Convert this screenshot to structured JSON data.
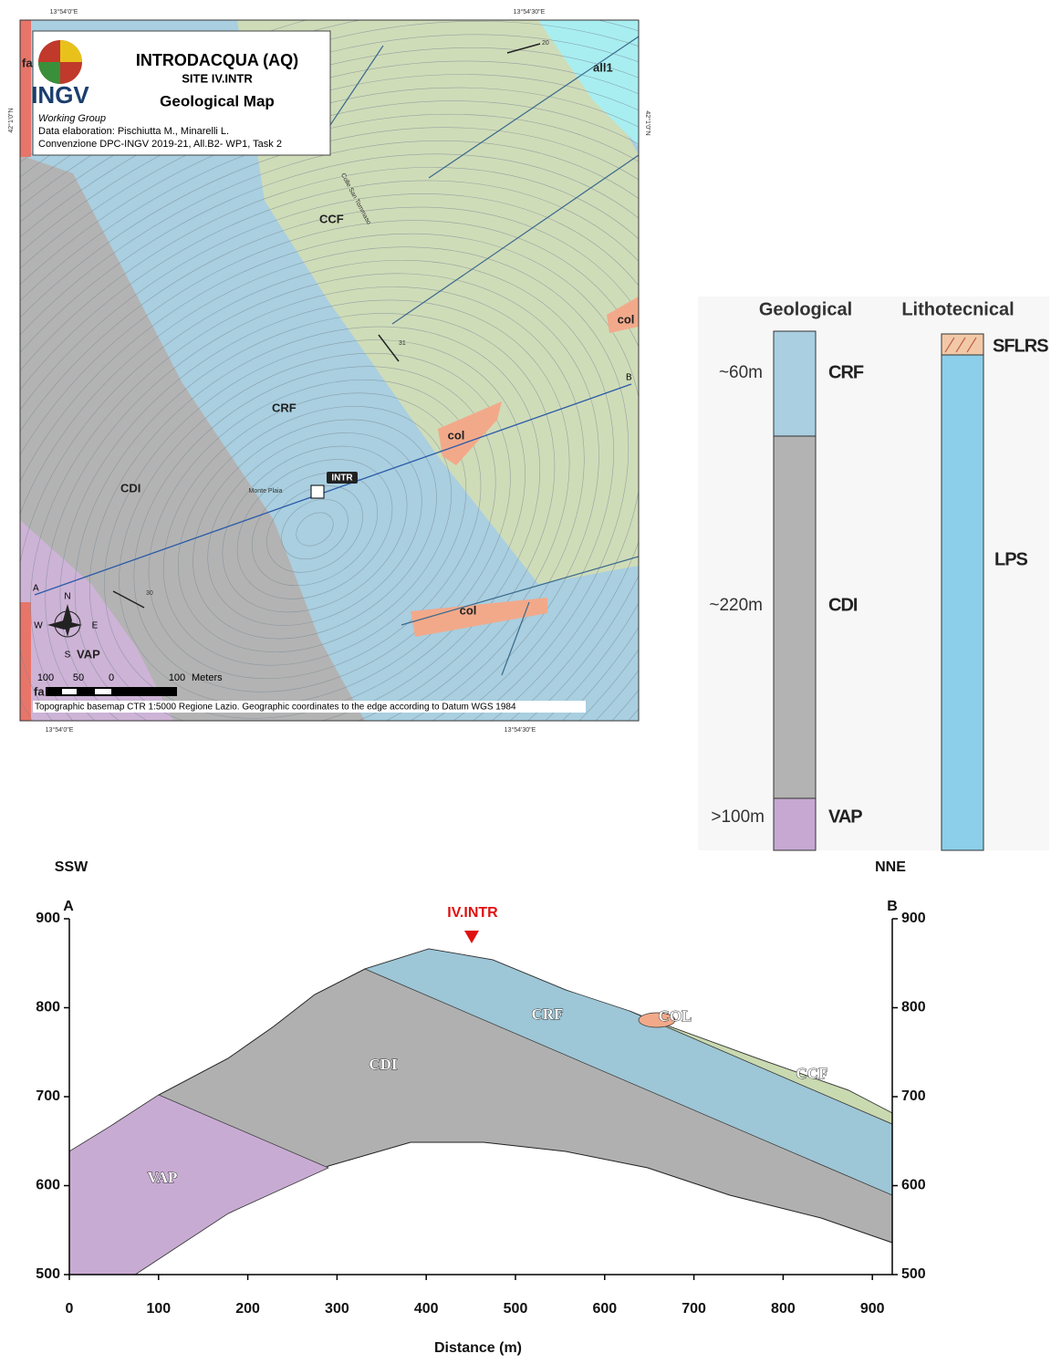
{
  "map": {
    "coords": {
      "top_left": "13°54'0\"E",
      "top_right": "13°54'30\"E",
      "bottom_left": "13°54'0\"E",
      "bottom_right": "13°54'30\"E",
      "left": "42°1'0\"N",
      "right": "42°1'0\"N"
    },
    "legend": {
      "title": "INTRODACQUA (AQ)",
      "site": "SITE IV.INTR",
      "subtitle": "Geological Map",
      "logo": "INGV",
      "group": "Working Group",
      "credit1": "Data elaboration: Pischiutta M., Minarelli L.",
      "credit2": "Convenzione DPC-INGV 2019-21, All.B2- WP1, Task 2"
    },
    "units": {
      "fa_top": "fa",
      "all1": "all1",
      "ccf": "CCF",
      "crf": "CRF",
      "cdi": "CDI",
      "col1": "col",
      "col2": "col",
      "col3": "col",
      "vap": "VAP",
      "fa_bottom": "fa"
    },
    "dips": [
      "20",
      "31",
      "30"
    ],
    "places": [
      "Colle San Tommaso",
      "Monte Plaia"
    ],
    "station": "INTR",
    "profile_ends": [
      "A",
      "B"
    ],
    "compass": [
      "N",
      "E",
      "S",
      "W"
    ],
    "scale": {
      "ticks": [
        "100",
        "50",
        "0",
        "100"
      ],
      "unit": "Meters"
    },
    "footer": "Topographic basemap CTR 1:5000 Regione Lazio. Geographic coordinates to the edge according to Datum WGS 1984"
  },
  "column": {
    "headers": [
      "Geological",
      "Lithotecnical"
    ],
    "geological": [
      {
        "thickness": "~60m",
        "unit": "CRF"
      },
      {
        "thickness": "~220m",
        "unit": "CDI"
      },
      {
        "thickness": ">100m",
        "unit": "VAP"
      }
    ],
    "lithotechnical": [
      "SFLRS",
      "LPS"
    ]
  },
  "section": {
    "left_dir": "SSW",
    "right_dir": "NNE",
    "ends": [
      "A",
      "B"
    ],
    "station": "IV.INTR",
    "units": [
      "CRF",
      "COL",
      "CDI",
      "CCF",
      "VAP"
    ],
    "x_label": "Distance (m)",
    "xticks": [
      0,
      100,
      200,
      300,
      400,
      500,
      600,
      700,
      800,
      900
    ],
    "yticks": [
      500,
      600,
      700,
      800,
      900
    ]
  }
}
